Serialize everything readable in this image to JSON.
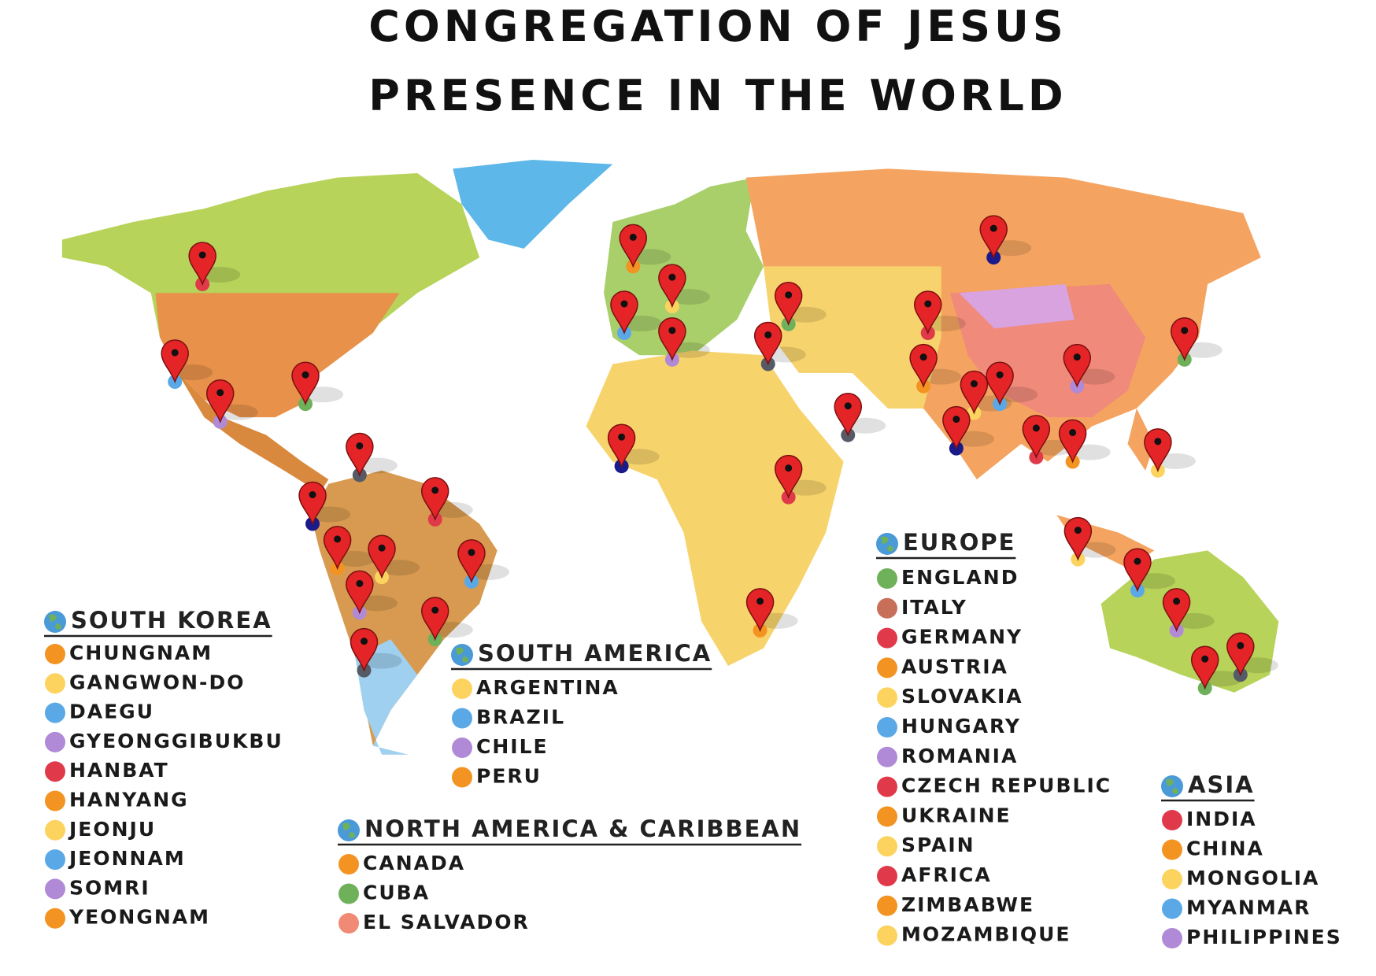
{
  "title": [
    "CONGREGATION OF JESUS",
    "PRESENCE IN THE WORLD"
  ],
  "legends": [
    {
      "heading": "SOUTH KOREA",
      "items": [
        {
          "label": "CHUNGNAM",
          "color": "#f39322"
        },
        {
          "label": "GANGWON-DO",
          "color": "#fdd35f"
        },
        {
          "label": "DAEGU",
          "color": "#5aa9e6"
        },
        {
          "label": "GYEONGGIBUKBU",
          "color": "#b08ad6"
        },
        {
          "label": "HANBAT",
          "color": "#e03a4a"
        },
        {
          "label": "HANYANG",
          "color": "#f39322"
        },
        {
          "label": "JEONJU",
          "color": "#fdd35f"
        },
        {
          "label": "JEONNAM",
          "color": "#5aa9e6"
        },
        {
          "label": "SOMRI",
          "color": "#b08ad6"
        },
        {
          "label": "YEONGNAM",
          "color": "#f39322"
        }
      ]
    },
    {
      "heading": "SOUTH AMERICA",
      "items": [
        {
          "label": "ARGENTINA",
          "color": "#fdd35f"
        },
        {
          "label": "BRAZIL",
          "color": "#5aa9e6"
        },
        {
          "label": "CHILE",
          "color": "#b08ad6"
        },
        {
          "label": "PERU",
          "color": "#f39322"
        }
      ]
    },
    {
      "heading": "NORTH AMERICA & CARIBBEAN",
      "items": [
        {
          "label": "CANADA",
          "color": "#f39322"
        },
        {
          "label": "CUBA",
          "color": "#6fb05a"
        },
        {
          "label": "EL SALVADOR",
          "color": "#f08a74"
        }
      ]
    },
    {
      "heading": "EUROPE",
      "items": [
        {
          "label": "ENGLAND",
          "color": "#6fb05a"
        },
        {
          "label": "ITALY",
          "color": "#c86f5a"
        },
        {
          "label": "GERMANY",
          "color": "#e03a4a"
        },
        {
          "label": "AUSTRIA",
          "color": "#f39322"
        },
        {
          "label": "SLOVAKIA",
          "color": "#fdd35f"
        },
        {
          "label": "HUNGARY",
          "color": "#5aa9e6"
        },
        {
          "label": "ROMANIA",
          "color": "#b08ad6"
        },
        {
          "label": "CZECH REPUBLIC",
          "color": "#e03a4a"
        },
        {
          "label": "UKRAINE",
          "color": "#f39322"
        },
        {
          "label": "SPAIN",
          "color": "#fdd35f"
        },
        {
          "label": "AFRICA",
          "color": "#e03a4a"
        },
        {
          "label": "ZIMBABWE",
          "color": "#f39322"
        },
        {
          "label": "MOZAMBIQUE",
          "color": "#fdd35f"
        }
      ]
    },
    {
      "heading": "ASIA",
      "items": [
        {
          "label": "INDIA",
          "color": "#e03a4a"
        },
        {
          "label": "CHINA",
          "color": "#f39322"
        },
        {
          "label": "MONGOLIA",
          "color": "#fdd35f"
        },
        {
          "label": "MYANMAR",
          "color": "#5aa9e6"
        },
        {
          "label": "PHILIPPINES",
          "color": "#b08ad6"
        }
      ]
    }
  ]
}
